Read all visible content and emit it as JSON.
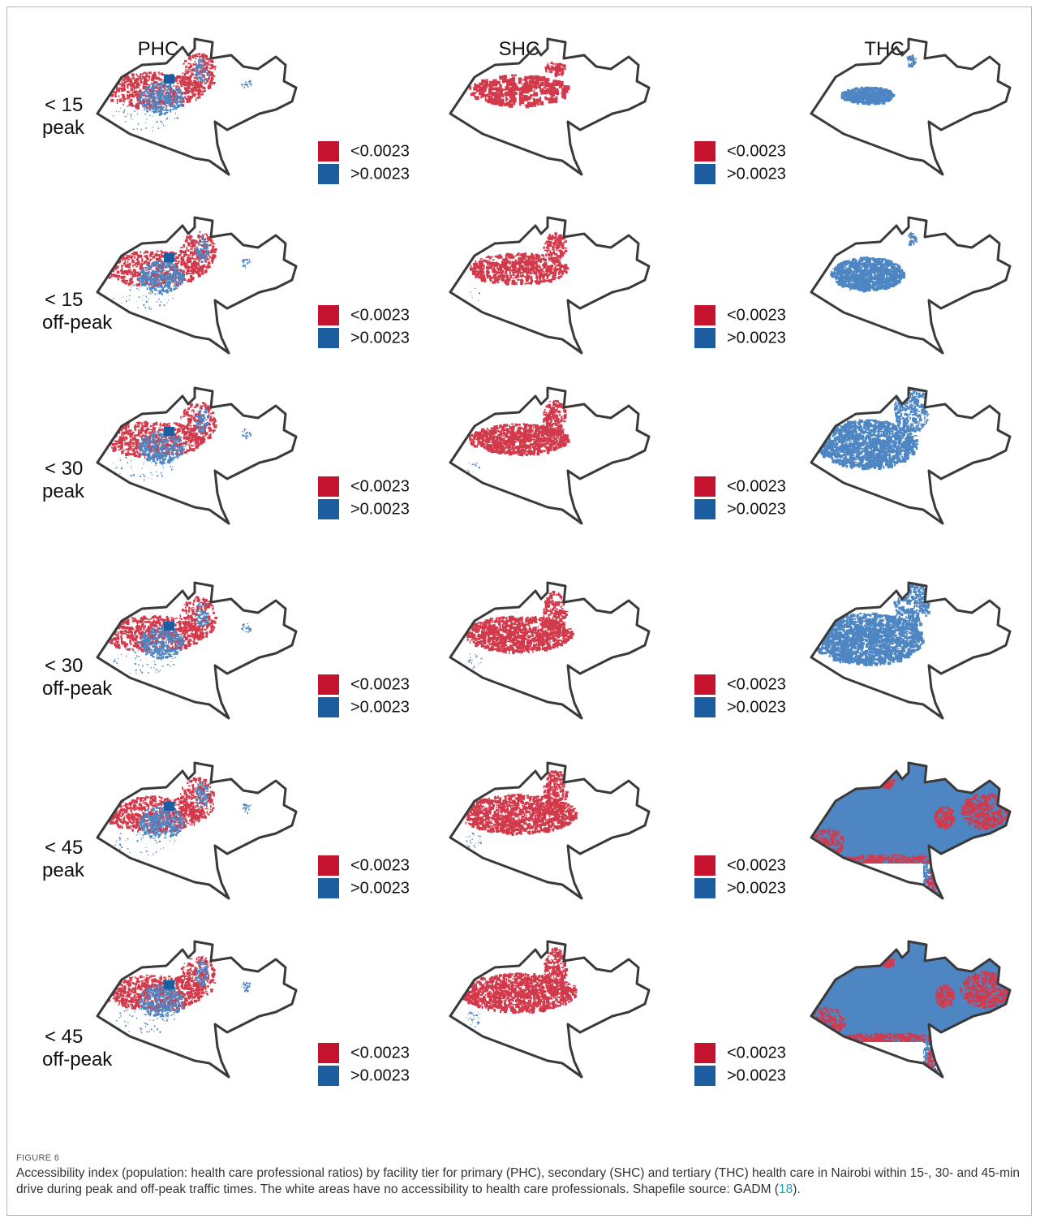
{
  "columns": [
    "PHC",
    "SHC",
    "THC"
  ],
  "rows": [
    {
      "time": "< 15",
      "period": "peak"
    },
    {
      "time": "< 15",
      "period": "off-peak"
    },
    {
      "time": "< 30",
      "period": "peak"
    },
    {
      "time": "< 30",
      "period": "off-peak"
    },
    {
      "time": "< 45",
      "period": "peak"
    },
    {
      "time": "< 45",
      "period": "off-peak"
    }
  ],
  "legend": [
    {
      "label": "<0.0023",
      "color": "#c4122f"
    },
    {
      "label": ">0.0023",
      "color": "#1c5d9f"
    }
  ],
  "caption": {
    "label": "FIGURE 6",
    "text": "Accessibility index (population: health care professional ratios) by facility tier for primary (PHC), secondary (SHC) and tertiary (THC) health care in Nairobi within 15-, 30- and 45-min drive during peak and off-peak traffic times. The white areas have no accessibility to health care professionals. Shapefile source: GADM (",
    "link": "18",
    "text_end": ")."
  }
}
